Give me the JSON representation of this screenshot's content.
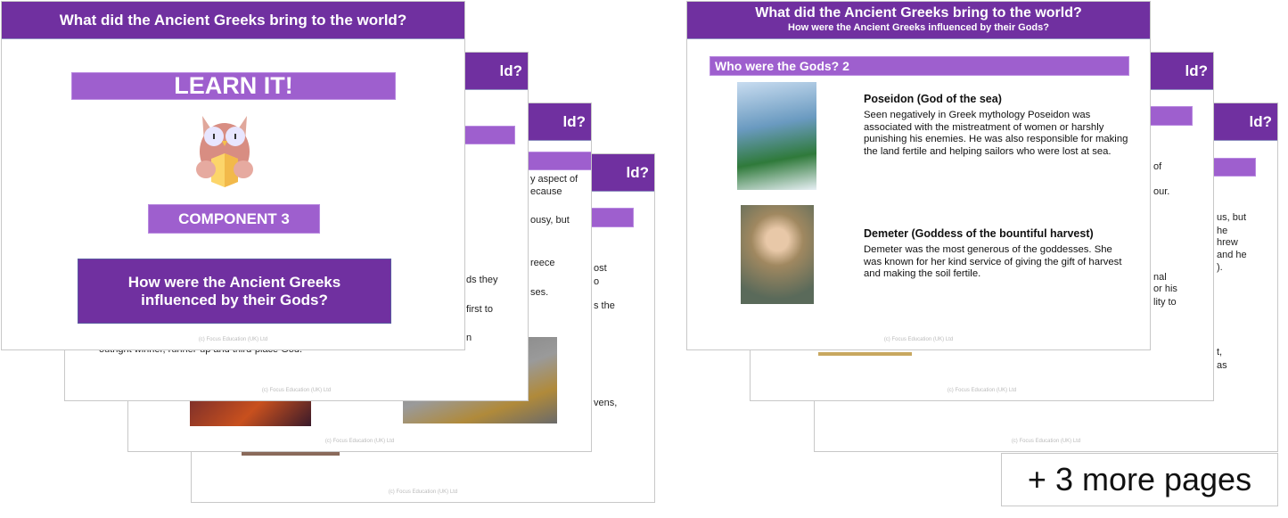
{
  "footer": "(c) Focus Education (UK) Ltd",
  "colors": {
    "header": "#7030a0",
    "bar": "#9e5fce"
  },
  "left_group": {
    "front": {
      "title": "What did the Ancient Greeks bring to the world?",
      "learn": "LEARN IT!",
      "component": "COMPONENT 3",
      "question_line1": "How were the Ancient Greeks",
      "question_line2": "influenced by their Gods?",
      "icon": "owl-reading-book-icon"
    },
    "back1": {
      "title_fragment": "ld?",
      "fragments": [
        "ds they",
        "first to",
        "n",
        "outright winner, runner-up and third-place God."
      ]
    },
    "back2": {
      "title_fragment": "ld?",
      "fragments": [
        "y aspect of",
        "ecause",
        "ousy, but",
        "reece",
        "ses."
      ]
    },
    "back3": {
      "title_fragment": "ld?",
      "fragments": [
        "ost",
        "o",
        "s the",
        "vens,"
      ]
    }
  },
  "right_group": {
    "front": {
      "title": "What did the Ancient Greeks bring to the world?",
      "subtitle": "How were the Ancient Greeks influenced by their Gods?",
      "section": "Who were the Gods? 2",
      "gods": [
        {
          "name": "Poseidon (God of the sea)",
          "text": "Seen negatively in Greek mythology Poseidon was associated with the mistreatment of women or harshly punishing his enemies. He was also responsible for making the land fertile and helping sailors who were lost at sea."
        },
        {
          "name": "Demeter (Goddess of the bountiful harvest)",
          "text": "Demeter was the most generous of the goddesses. She was known for her kind service of giving the gift of harvest and making the soil fertile."
        }
      ]
    },
    "back1": {
      "title_fragment": "ld?",
      "fragments": [
        "of",
        "our.",
        "nal",
        "or his",
        "lity to"
      ]
    },
    "back2": {
      "title_fragment": "ld?",
      "fragments": [
        "us, but",
        "he",
        "hrew",
        "and he",
        ").",
        "t,",
        "as"
      ]
    }
  },
  "more_pages": "+ 3 more pages"
}
